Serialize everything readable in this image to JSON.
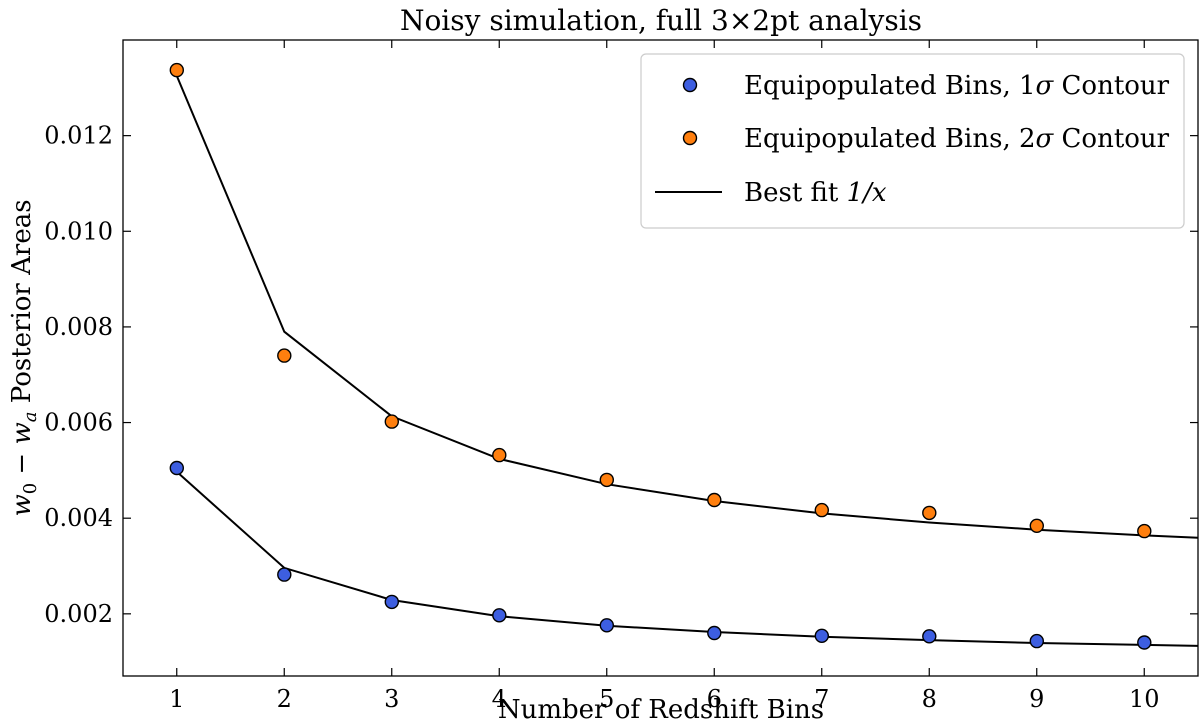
{
  "chart_data": {
    "type": "scatter",
    "title": "Noisy simulation, full 3×2pt analysis",
    "xlabel": "Number of Redshift Bins",
    "ylabel_parts": {
      "w0": "w",
      "w0_sub": "0",
      "minus": " − ",
      "wa": "w",
      "wa_sub": "a",
      "rest": " Posterior Areas"
    },
    "xlim": [
      0.5,
      10.5
    ],
    "ylim": [
      0.0007,
      0.014
    ],
    "xticks": [
      1,
      2,
      3,
      4,
      5,
      6,
      7,
      8,
      9,
      10
    ],
    "yticks": [
      0.002,
      0.004,
      0.006,
      0.008,
      0.01,
      0.012
    ],
    "ytick_labels": [
      "0.002",
      "0.004",
      "0.006",
      "0.008",
      "0.010",
      "0.012"
    ],
    "grid": false,
    "legend_position": "top-right",
    "series": [
      {
        "name": "Equipopulated Bins, 1σ Contour",
        "legend_parts": {
          "pre": "Equipopulated Bins, 1",
          "sym": "σ",
          "post": " Contour"
        },
        "kind": "scatter",
        "color": "#3d5ee0",
        "x": [
          1,
          2,
          3,
          4,
          5,
          6,
          7,
          8,
          9,
          10
        ],
        "y": [
          0.00505,
          0.00282,
          0.00225,
          0.00197,
          0.00176,
          0.0016,
          0.00154,
          0.00153,
          0.00143,
          0.0014
        ]
      },
      {
        "name": "Equipopulated Bins, 2σ Contour",
        "legend_parts": {
          "pre": "Equipopulated Bins, 2",
          "sym": "σ",
          "post": " Contour"
        },
        "kind": "scatter",
        "color": "#ff7f0e",
        "x": [
          1,
          2,
          3,
          4,
          5,
          6,
          7,
          8,
          9,
          10
        ],
        "y": [
          0.01337,
          0.0074,
          0.00602,
          0.00532,
          0.0048,
          0.00438,
          0.00417,
          0.00411,
          0.00384,
          0.00373
        ]
      }
    ],
    "fits": [
      {
        "x": [
          1,
          2,
          3,
          4,
          5,
          6,
          7,
          8,
          9,
          10,
          10.5
        ],
        "y": [
          0.00497,
          0.00296,
          0.00229,
          0.00195,
          0.00175,
          0.00162,
          0.00152,
          0.00145,
          0.00139,
          0.00135,
          0.00133
        ]
      },
      {
        "x": [
          1,
          2,
          3,
          4,
          5,
          6,
          7,
          8,
          9,
          10,
          10.5
        ],
        "y": [
          0.01325,
          0.0079,
          0.00613,
          0.00524,
          0.00471,
          0.00436,
          0.0041,
          0.00391,
          0.00376,
          0.00364,
          0.00359
        ]
      }
    ],
    "fit_legend": {
      "pre": "Best fit ",
      "math": "1/x"
    },
    "fit_color": "#000000"
  }
}
